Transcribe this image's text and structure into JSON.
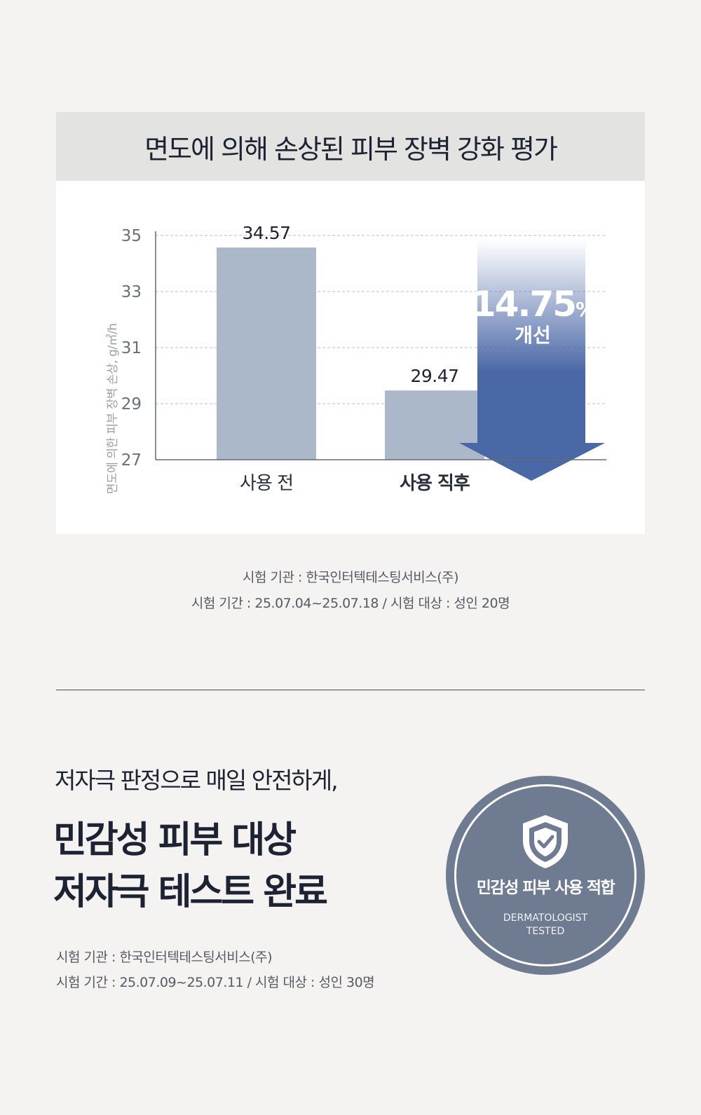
{
  "chart_data": {
    "type": "bar",
    "title": "면도에 의해 손상된 피부 장벽 강화 평가",
    "ylabel": "면도에 의한 피부 장벽 손상, g/㎡/h",
    "categories": [
      "사용 전",
      "사용 직후"
    ],
    "values": [
      34.57,
      29.47
    ],
    "value_labels": [
      "34.57",
      "29.47"
    ],
    "yticks": [
      27,
      29,
      31,
      33,
      35
    ],
    "ylim": [
      27,
      35
    ],
    "grid": true,
    "bar_color": "#aab8c9",
    "improvement": {
      "percent": "14.75",
      "unit": "%",
      "label": "개선",
      "arrow_color": "#4a67a6"
    }
  },
  "test1": {
    "institution": "시험 기관 : 한국인터텍테스팅서비스(주)",
    "period": "시험 기간 : 25.07.04~25.07.18 / 시험 대상 : 성인 20명"
  },
  "section2": {
    "subtitle": "저자극 판정으로 매일 안전하게,",
    "headline_line1": "민감성 피부 대상",
    "headline_line2": "저자극 테스트 완료",
    "institution": "시험 기관 : 한국인터텍테스팅서비스(주)",
    "period": "시험 기간 : 25.07.09~25.07.11 / 시험 대상 : 성인 30명"
  },
  "badge": {
    "title": "민감성 피부 사용 적합",
    "sub_line1": "DERMATOLOGIST",
    "sub_line2": "TESTED",
    "icon": "shield-check-icon",
    "color": "#6f7b91"
  }
}
